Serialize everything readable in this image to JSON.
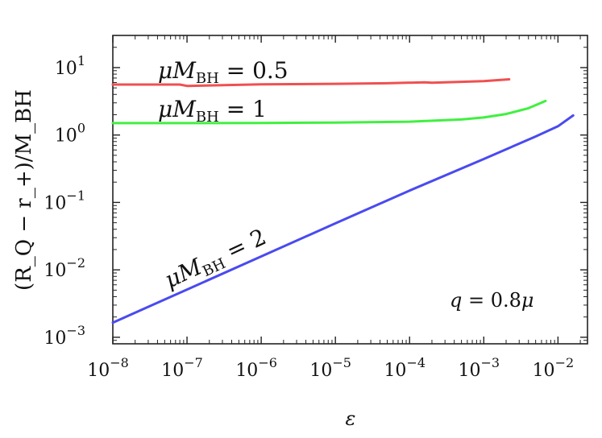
{
  "chart_data": {
    "type": "line",
    "xlabel": "ε",
    "ylabel": "(R_Q − r_+)/M_BH",
    "x_scale": "log",
    "y_scale": "log",
    "xlim": [
      1e-08,
      0.025
    ],
    "ylim": [
      0.0008,
      30
    ],
    "grid": false,
    "legend": "none",
    "x_ticks": [
      {
        "value": 1e-08,
        "base": "10",
        "exp": "−8"
      },
      {
        "value": 1e-07,
        "base": "10",
        "exp": "−7"
      },
      {
        "value": 1e-06,
        "base": "10",
        "exp": "−6"
      },
      {
        "value": 1e-05,
        "base": "10",
        "exp": "−5"
      },
      {
        "value": 0.0001,
        "base": "10",
        "exp": "−4"
      },
      {
        "value": 0.001,
        "base": "10",
        "exp": "−3"
      },
      {
        "value": 0.01,
        "base": "10",
        "exp": "−2"
      }
    ],
    "y_ticks": [
      {
        "value": 10,
        "base": "10",
        "exp": "1"
      },
      {
        "value": 1,
        "base": "10",
        "exp": "0"
      },
      {
        "value": 0.1,
        "base": "10",
        "exp": "−1"
      },
      {
        "value": 0.01,
        "base": "10",
        "exp": "−2"
      },
      {
        "value": 0.001,
        "base": "10",
        "exp": "−3"
      }
    ],
    "series": [
      {
        "name": "μM_BH = 0.5",
        "label_main": "μM",
        "label_sub": "BH",
        "label_rest": " = 0.5",
        "color": "#f05050",
        "x": [
          1e-08,
          3e-08,
          8e-08,
          1e-07,
          1e-06,
          1e-05,
          5e-05,
          0.00016,
          0.0002,
          0.0005,
          0.001,
          0.0022
        ],
        "y": [
          5.6,
          5.6,
          5.6,
          5.35,
          5.65,
          5.75,
          5.85,
          6.05,
          5.95,
          6.15,
          6.3,
          6.7
        ]
      },
      {
        "name": "μM_BH = 1",
        "label_main": "μM",
        "label_sub": "BH",
        "label_rest": " = 1",
        "color": "#40f040",
        "x": [
          1e-08,
          1e-07,
          1e-06,
          1e-05,
          0.0001,
          0.0005,
          0.001,
          0.002,
          0.004,
          0.0068
        ],
        "y": [
          1.5,
          1.5,
          1.51,
          1.53,
          1.58,
          1.7,
          1.82,
          2.05,
          2.5,
          3.2
        ]
      },
      {
        "name": "μM_BH = 2",
        "label_main": "μM",
        "label_sub": "BH",
        "label_rest": " = 2",
        "color": "#4a4af0",
        "x": [
          1e-08,
          1e-07,
          1e-06,
          1e-05,
          0.0001,
          0.001,
          0.005,
          0.01,
          0.016
        ],
        "y": [
          0.00165,
          0.0051,
          0.0158,
          0.049,
          0.15,
          0.44,
          0.95,
          1.35,
          1.95
        ]
      }
    ],
    "annotation": {
      "q": "q",
      "rest": " = 0.8",
      "mu": "μ"
    }
  }
}
